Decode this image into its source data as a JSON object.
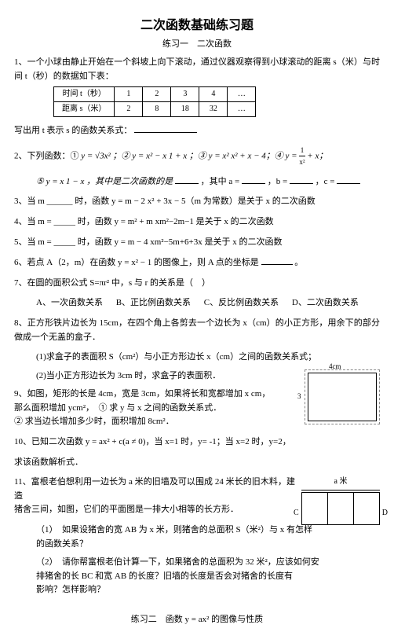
{
  "title": "二次函数基础练习题",
  "subtitle": "练习一　二次函数",
  "q1": {
    "text": "1、一个小球由静止开始在一个斜坡上向下滚动，通过仪器观察得到小球滚动的距离 s（米）与时间 t（秒）的数据如下表：",
    "table": {
      "row1": [
        "时间 t（秒）",
        "1",
        "2",
        "3",
        "4",
        "…"
      ],
      "row2": [
        "距离 s（米）",
        "2",
        "8",
        "18",
        "32",
        "…"
      ]
    },
    "after": "写出用 t 表示 s 的函数关系式："
  },
  "q2": {
    "lead": "2、下列函数：① ",
    "f1": "y = √3x²",
    "f2": "；② y = x² − x 1 + x ；③ y = x² x² + x − 4；④ ",
    "f3_num": "1",
    "f3_den": "x²",
    "f3_tail": " + x；",
    "line2a": "⑤ y = x 1 − x ，其中是二次函数的是",
    "line2b": "，其中 a =",
    "line2c": "，b =",
    "line2d": "，c ="
  },
  "q3": "3、当 m ______ 时，函数 y = m − 2 x² + 3x − 5（m 为常数）是关于 x 的二次函数",
  "q4": "4、当 m = _____ 时，函数 y = m² + m xm²−2m−1 是关于 x 的二次函数",
  "q5": "5、当 m = _____ 时，函数 y = m − 4 xm²−5m+6+3x 是关于 x 的二次函数",
  "q6": {
    "a": "6、若点 A（2，m）在函数 y = x² − 1 的图像上，则 A 点的坐标是",
    "b": "。"
  },
  "q7": {
    "text": "7、在圆的面积公式 S=πr² 中，s 与 r 的关系是（　）",
    "A": "A、一次函数关系",
    "B": "B、正比例函数关系",
    "C": "C、反比例函数关系",
    "D": "D、二次函数关系"
  },
  "q8": {
    "main": "8、正方形铁片边长为 15cm，在四个角上各剪去一个边长为 x（cm）的小正方形，用余下的部分做成一个无盖的盒子．",
    "s1": "(1)求盒子的表面积 S（cm²）与小正方形边长 x（cm）之间的函数关系式；",
    "s2": "(2)当小正方形边长为 3cm 时，求盒子的表面积．"
  },
  "q9": {
    "l1": "9、如图，矩形的长是 4cm，宽是 3cm，如果将长和宽都增加 x cm，",
    "l2": "那么面积增加 ycm²，　① 求 y 与 x 之间的函数关系式．",
    "l3": "② 求当边长增加多少时，面积增加 8cm²．",
    "fig_top": "4cm",
    "fig_side": "3"
  },
  "q10": {
    "l1": "10、已知二次函数 y = ax² + c(a ≠ 0)，当 x=1 时，y= -1；当 x=2 时，y=2，",
    "l2": "求该函数解析式．"
  },
  "q11": {
    "l1": "11、富根老伯想利用一边长为 a 米的旧墙及可以围成 24 米长的旧木料，建造",
    "l2": "猪舍三间，如图，它们的平面图是一排大小相等的长方形．",
    "s1a": "（1）　如果设猪舍的宽 AB 为 x 米，则猪舍的总面积 S（米²）与 x 有怎样",
    "s1b": "的函数关系？",
    "s2a": "（2）　请你帮富根老伯计算一下，如果猪舍的总面积为 32 米²，应该如何安",
    "s2b": "排猪舍的长 BC 和宽 AB 的长度？旧墙的长度是否会对猪舍的长度有",
    "s2c": "影响？怎样影响？",
    "fig_label": "a 米",
    "fig_c": "C",
    "fig_d": "D"
  },
  "footer": "练习二　函数 y = ax² 的图像与性质"
}
